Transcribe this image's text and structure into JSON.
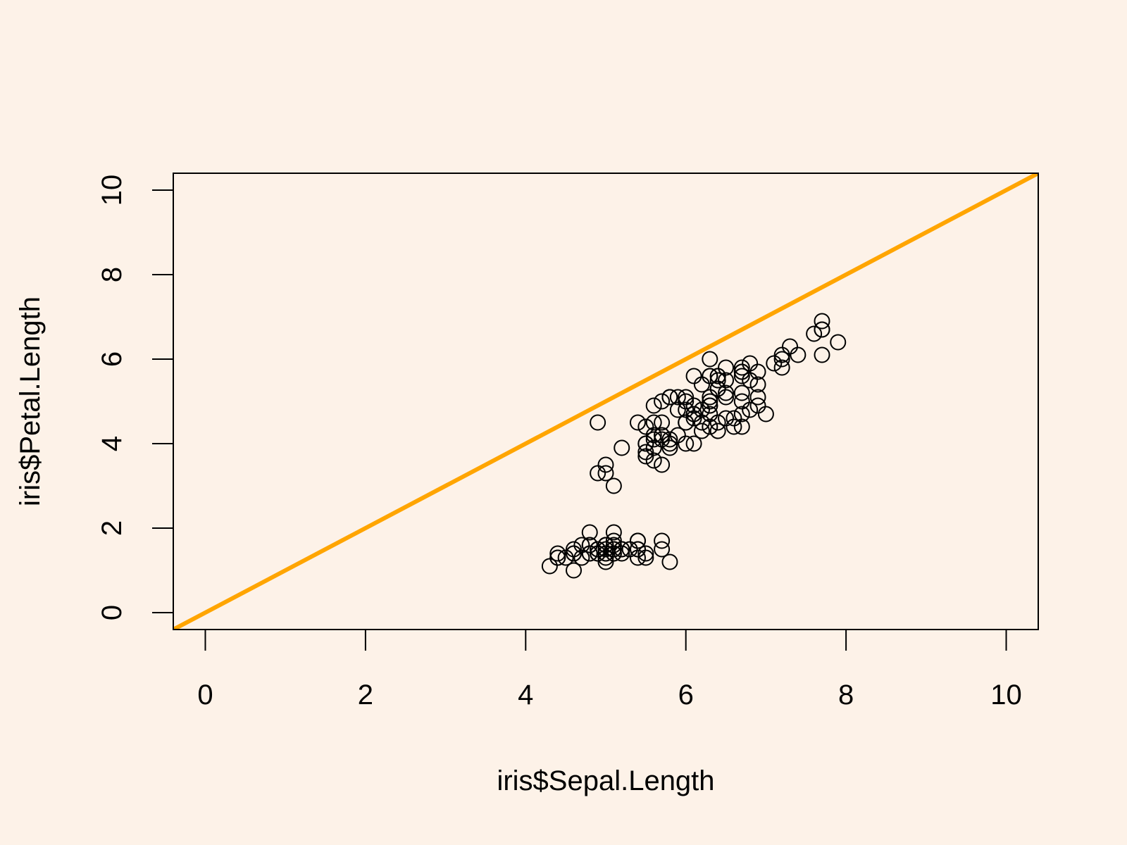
{
  "chart_data": {
    "type": "scatter",
    "title": "",
    "xlabel": "iris$Sepal.Length",
    "ylabel": "iris$Petal.Length",
    "xlim": [
      -0.4,
      10.4
    ],
    "ylim": [
      -0.4,
      10.4
    ],
    "x_ticks": [
      0,
      2,
      4,
      6,
      8,
      10
    ],
    "y_ticks": [
      0,
      2,
      4,
      6,
      8,
      10
    ],
    "grid": false,
    "legend": "none",
    "colors": {
      "background": "#fdf2e8",
      "points": "#000000",
      "reference_line": "#ffa500"
    },
    "reference_line": {
      "intercept": 0,
      "slope": 1
    },
    "x": [
      5.1,
      4.9,
      4.7,
      4.6,
      5.0,
      5.4,
      4.6,
      5.0,
      4.4,
      4.9,
      5.4,
      4.8,
      4.8,
      4.3,
      5.8,
      5.7,
      5.4,
      5.1,
      5.7,
      5.1,
      5.4,
      5.1,
      4.6,
      5.1,
      4.8,
      5.0,
      5.0,
      5.2,
      5.2,
      4.7,
      4.8,
      5.4,
      5.2,
      5.5,
      4.9,
      5.0,
      5.5,
      4.9,
      4.4,
      5.1,
      5.0,
      4.5,
      4.4,
      5.0,
      5.1,
      4.8,
      5.1,
      4.6,
      5.3,
      5.0,
      7.0,
      6.4,
      6.9,
      5.5,
      6.5,
      5.7,
      6.3,
      4.9,
      6.6,
      5.2,
      5.0,
      5.9,
      6.0,
      6.1,
      5.6,
      6.7,
      5.6,
      5.8,
      6.2,
      5.6,
      5.9,
      6.1,
      6.3,
      6.1,
      6.4,
      6.6,
      6.8,
      6.7,
      6.0,
      5.7,
      5.5,
      5.5,
      5.8,
      6.0,
      5.4,
      6.0,
      6.7,
      6.3,
      5.6,
      5.5,
      5.5,
      6.1,
      5.8,
      5.0,
      5.6,
      5.7,
      5.7,
      6.2,
      5.1,
      5.7,
      6.3,
      5.8,
      7.1,
      6.3,
      6.5,
      7.6,
      4.9,
      7.3,
      6.7,
      7.2,
      6.5,
      6.4,
      6.8,
      5.7,
      5.8,
      6.4,
      6.5,
      7.7,
      7.7,
      6.0,
      6.9,
      5.6,
      7.7,
      6.3,
      6.7,
      7.2,
      6.2,
      6.1,
      6.4,
      7.2,
      7.4,
      7.9,
      6.4,
      6.3,
      6.1,
      7.7,
      6.3,
      6.4,
      6.0,
      6.9,
      6.7,
      6.9,
      5.8,
      6.8,
      6.7,
      6.7,
      6.3,
      6.5,
      6.2,
      5.9
    ],
    "y": [
      1.4,
      1.4,
      1.3,
      1.5,
      1.4,
      1.7,
      1.4,
      1.5,
      1.4,
      1.5,
      1.5,
      1.6,
      1.4,
      1.1,
      1.2,
      1.5,
      1.3,
      1.4,
      1.7,
      1.5,
      1.7,
      1.5,
      1.0,
      1.7,
      1.9,
      1.6,
      1.6,
      1.5,
      1.4,
      1.6,
      1.6,
      1.5,
      1.5,
      1.4,
      1.5,
      1.2,
      1.3,
      1.4,
      1.3,
      1.5,
      1.3,
      1.3,
      1.3,
      1.6,
      1.9,
      1.4,
      1.6,
      1.4,
      1.5,
      1.4,
      4.7,
      4.5,
      4.9,
      4.0,
      4.6,
      4.5,
      4.7,
      3.3,
      4.6,
      3.9,
      3.5,
      4.2,
      4.0,
      4.7,
      3.6,
      4.4,
      4.5,
      4.1,
      4.5,
      3.9,
      4.8,
      4.0,
      4.9,
      4.7,
      4.3,
      4.4,
      4.8,
      5.0,
      4.5,
      3.5,
      3.8,
      3.7,
      3.9,
      5.1,
      4.5,
      4.5,
      4.7,
      4.4,
      4.1,
      4.0,
      4.4,
      4.6,
      4.0,
      3.3,
      4.2,
      4.2,
      4.2,
      4.3,
      3.0,
      4.1,
      6.0,
      5.1,
      5.9,
      5.6,
      5.8,
      6.6,
      4.5,
      6.3,
      5.8,
      6.1,
      5.1,
      5.3,
      5.5,
      5.0,
      5.1,
      5.3,
      5.5,
      6.7,
      6.9,
      5.0,
      5.7,
      4.9,
      6.7,
      4.9,
      5.7,
      6.0,
      4.8,
      4.9,
      5.6,
      5.8,
      6.1,
      6.4,
      5.6,
      5.1,
      5.6,
      6.1,
      5.6,
      5.5,
      4.8,
      5.4,
      5.6,
      5.1,
      5.1,
      5.9,
      5.7,
      5.2,
      5.0,
      5.2,
      5.4,
      5.1
    ]
  }
}
